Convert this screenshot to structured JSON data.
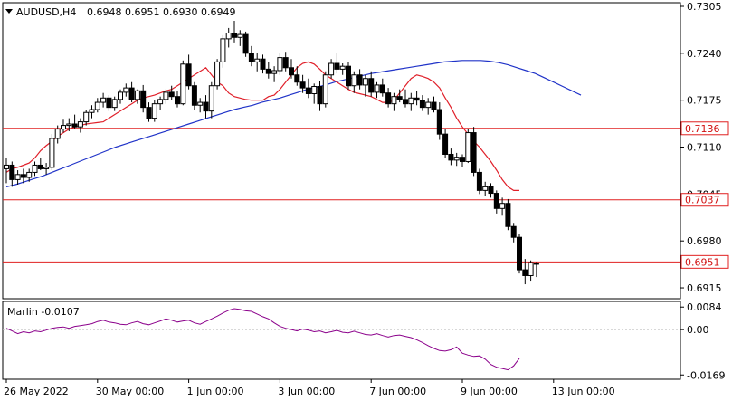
{
  "header": {
    "symbol": "AUDUSD,H4",
    "ohlc": "0.6948 0.6951 0.6930 0.6949",
    "indicator_label": "Marlin -0.0107"
  },
  "colors": {
    "bull_candle": "#ffffff",
    "bear_candle": "#000000",
    "candle_outline": "#000000",
    "ma_fast": "#e0202a",
    "ma_slow": "#2033c8",
    "hline": "#e02020",
    "hline_label_bg": "#ffffff",
    "hline_label_text": "#d01010",
    "oscillator": "#8b008b",
    "grid_border": "#000000"
  },
  "chart_data": [
    {
      "type": "candlestick",
      "name": "AUDUSD,H4",
      "x_ticks": [
        "26 May 2022",
        "30 May 00:00",
        "1 Jun 00:00",
        "3 Jun 00:00",
        "7 Jun 00:00",
        "9 Jun 00:00",
        "13 Jun 00:00"
      ],
      "x_tick_index": [
        0,
        16,
        32,
        48,
        64,
        80,
        96
      ],
      "y_ticks": [
        "0.7305",
        "0.7240",
        "0.7175",
        "0.7110",
        "0.7045",
        "0.6980",
        "0.6915"
      ],
      "y_tick_values": [
        0.7305,
        0.724,
        0.7175,
        0.711,
        0.7045,
        0.698,
        0.6915
      ],
      "ylim": [
        0.69,
        0.731
      ],
      "candles": [
        [
          0.708,
          0.7095,
          0.706,
          0.7085
        ],
        [
          0.7085,
          0.709,
          0.7055,
          0.7065
        ],
        [
          0.7065,
          0.7078,
          0.7058,
          0.7072
        ],
        [
          0.7072,
          0.708,
          0.706,
          0.7068
        ],
        [
          0.7068,
          0.708,
          0.7062,
          0.7075
        ],
        [
          0.7075,
          0.709,
          0.707,
          0.7085
        ],
        [
          0.7085,
          0.7095,
          0.7078,
          0.708
        ],
        [
          0.708,
          0.7088,
          0.7072,
          0.7082
        ],
        [
          0.7082,
          0.7128,
          0.7078,
          0.7122
        ],
        [
          0.7122,
          0.714,
          0.7115,
          0.7135
        ],
        [
          0.7135,
          0.7148,
          0.713,
          0.714
        ],
        [
          0.714,
          0.715,
          0.7132,
          0.7142
        ],
        [
          0.7142,
          0.7155,
          0.7136,
          0.7138
        ],
        [
          0.7138,
          0.715,
          0.713,
          0.7145
        ],
        [
          0.7145,
          0.7162,
          0.714,
          0.7158
        ],
        [
          0.7158,
          0.7168,
          0.715,
          0.7162
        ],
        [
          0.7162,
          0.7178,
          0.7158,
          0.7172
        ],
        [
          0.7172,
          0.7185,
          0.7165,
          0.7178
        ],
        [
          0.7178,
          0.7182,
          0.716,
          0.7165
        ],
        [
          0.7165,
          0.718,
          0.716,
          0.7176
        ],
        [
          0.7176,
          0.719,
          0.717,
          0.7186
        ],
        [
          0.7186,
          0.7198,
          0.718,
          0.7192
        ],
        [
          0.7192,
          0.72,
          0.7172,
          0.7176
        ],
        [
          0.7176,
          0.719,
          0.717,
          0.7188
        ],
        [
          0.7188,
          0.7196,
          0.7158,
          0.7165
        ],
        [
          0.7165,
          0.7172,
          0.7145,
          0.715
        ],
        [
          0.715,
          0.7175,
          0.7145,
          0.717
        ],
        [
          0.717,
          0.718,
          0.7162,
          0.7176
        ],
        [
          0.7176,
          0.719,
          0.717,
          0.7186
        ],
        [
          0.7186,
          0.7195,
          0.7175,
          0.718
        ],
        [
          0.718,
          0.7188,
          0.7165,
          0.717
        ],
        [
          0.717,
          0.723,
          0.7168,
          0.7225
        ],
        [
          0.7225,
          0.7238,
          0.719,
          0.7195
        ],
        [
          0.7195,
          0.72,
          0.7162,
          0.7168
        ],
        [
          0.7168,
          0.7178,
          0.7158,
          0.7172
        ],
        [
          0.7172,
          0.7182,
          0.715,
          0.716
        ],
        [
          0.716,
          0.72,
          0.715,
          0.7195
        ],
        [
          0.7195,
          0.7232,
          0.719,
          0.7228
        ],
        [
          0.7228,
          0.7265,
          0.722,
          0.726
        ],
        [
          0.726,
          0.7275,
          0.7248,
          0.7268
        ],
        [
          0.7268,
          0.7285,
          0.7255,
          0.7262
        ],
        [
          0.7262,
          0.7272,
          0.725,
          0.7266
        ],
        [
          0.7266,
          0.727,
          0.7235,
          0.724
        ],
        [
          0.724,
          0.725,
          0.7222,
          0.7228
        ],
        [
          0.7228,
          0.724,
          0.7215,
          0.7232
        ],
        [
          0.7232,
          0.7238,
          0.7212,
          0.7218
        ],
        [
          0.7218,
          0.7228,
          0.7205,
          0.7212
        ],
        [
          0.7212,
          0.7222,
          0.72,
          0.7216
        ],
        [
          0.7216,
          0.724,
          0.721,
          0.7234
        ],
        [
          0.7234,
          0.7242,
          0.7215,
          0.722
        ],
        [
          0.722,
          0.7232,
          0.7205,
          0.721
        ],
        [
          0.721,
          0.7222,
          0.7195,
          0.72
        ],
        [
          0.72,
          0.721,
          0.7185,
          0.7192
        ],
        [
          0.7192,
          0.7205,
          0.7178,
          0.7184
        ],
        [
          0.7184,
          0.7198,
          0.717,
          0.7194
        ],
        [
          0.7194,
          0.7202,
          0.716,
          0.717
        ],
        [
          0.717,
          0.7215,
          0.7165,
          0.721
        ],
        [
          0.721,
          0.7232,
          0.7205,
          0.7226
        ],
        [
          0.7226,
          0.724,
          0.7212,
          0.7218
        ],
        [
          0.7218,
          0.7226,
          0.721,
          0.7222
        ],
        [
          0.7222,
          0.7228,
          0.719,
          0.7195
        ],
        [
          0.7195,
          0.7215,
          0.7185,
          0.721
        ],
        [
          0.721,
          0.7218,
          0.719,
          0.7196
        ],
        [
          0.7196,
          0.721,
          0.718,
          0.7205
        ],
        [
          0.7205,
          0.7215,
          0.718,
          0.7186
        ],
        [
          0.7186,
          0.72,
          0.7178,
          0.7196
        ],
        [
          0.7196,
          0.7205,
          0.718,
          0.7185
        ],
        [
          0.7185,
          0.7192,
          0.7165,
          0.717
        ],
        [
          0.717,
          0.7185,
          0.716,
          0.718
        ],
        [
          0.718,
          0.719,
          0.7172,
          0.7176
        ],
        [
          0.7176,
          0.719,
          0.7165,
          0.717
        ],
        [
          0.717,
          0.7185,
          0.716,
          0.7178
        ],
        [
          0.7178,
          0.7188,
          0.7168,
          0.7175
        ],
        [
          0.7175,
          0.7182,
          0.716,
          0.7165
        ],
        [
          0.7165,
          0.7178,
          0.7155,
          0.7172
        ],
        [
          0.7172,
          0.718,
          0.7158,
          0.7162
        ],
        [
          0.7162,
          0.7172,
          0.712,
          0.7128
        ],
        [
          0.7128,
          0.7135,
          0.7095,
          0.71
        ],
        [
          0.71,
          0.7108,
          0.7085,
          0.7092
        ],
        [
          0.7092,
          0.7102,
          0.7084,
          0.7096
        ],
        [
          0.7096,
          0.71,
          0.7082,
          0.709
        ],
        [
          0.709,
          0.7135,
          0.7088,
          0.713
        ],
        [
          0.713,
          0.7138,
          0.707,
          0.7075
        ],
        [
          0.7075,
          0.708,
          0.7045,
          0.705
        ],
        [
          0.705,
          0.7062,
          0.7042,
          0.7055
        ],
        [
          0.7055,
          0.706,
          0.704,
          0.7046
        ],
        [
          0.7046,
          0.705,
          0.7018,
          0.7025
        ],
        [
          0.7025,
          0.704,
          0.7015,
          0.7032
        ],
        [
          0.7032,
          0.7038,
          0.6995,
          0.7
        ],
        [
          0.7,
          0.7005,
          0.6978,
          0.6985
        ],
        [
          0.6985,
          0.699,
          0.6935,
          0.694
        ],
        [
          0.694,
          0.6955,
          0.692,
          0.6932
        ],
        [
          0.6932,
          0.6953,
          0.6925,
          0.695
        ],
        [
          0.6948,
          0.6951,
          0.693,
          0.6949
        ]
      ],
      "ma_fast": [
        0.7075,
        0.708,
        0.7082,
        0.7085,
        0.7088,
        0.7095,
        0.7105,
        0.7112,
        0.7118,
        0.7125,
        0.713,
        0.7135,
        0.7138,
        0.714,
        0.7142,
        0.7143,
        0.7144,
        0.7145,
        0.715,
        0.7155,
        0.716,
        0.7165,
        0.717,
        0.7175,
        0.7178,
        0.718,
        0.7182,
        0.7185,
        0.7188,
        0.719,
        0.7195,
        0.72,
        0.7205,
        0.721,
        0.7215,
        0.722,
        0.721,
        0.72,
        0.7195,
        0.7185,
        0.718,
        0.7178,
        0.7176,
        0.7175,
        0.7175,
        0.7175,
        0.718,
        0.7182,
        0.719,
        0.72,
        0.721,
        0.722,
        0.7226,
        0.7228,
        0.7225,
        0.7218,
        0.721,
        0.7205,
        0.72,
        0.7195,
        0.719,
        0.7186,
        0.7184,
        0.7182,
        0.718,
        0.7176,
        0.7172,
        0.7172,
        0.7175,
        0.7185,
        0.7195,
        0.7205,
        0.721,
        0.7208,
        0.7205,
        0.72,
        0.7192,
        0.7178,
        0.7165,
        0.715,
        0.7138,
        0.7128,
        0.7118,
        0.711,
        0.71,
        0.709,
        0.7078,
        0.7065,
        0.7055,
        0.705,
        0.705
      ],
      "ma_slow": [
        0.7055,
        0.7058,
        0.7062,
        0.7066,
        0.707,
        0.7075,
        0.708,
        0.7085,
        0.709,
        0.7095,
        0.71,
        0.7105,
        0.711,
        0.7114,
        0.7118,
        0.7122,
        0.7126,
        0.713,
        0.7134,
        0.7138,
        0.7142,
        0.7146,
        0.715,
        0.7154,
        0.7158,
        0.7162,
        0.7165,
        0.7168,
        0.7172,
        0.7175,
        0.7178,
        0.7182,
        0.7186,
        0.719,
        0.7193,
        0.7196,
        0.72,
        0.7203,
        0.7206,
        0.7209,
        0.7212,
        0.7214,
        0.7216,
        0.7218,
        0.722,
        0.7222,
        0.7224,
        0.7226,
        0.7228,
        0.7229,
        0.723,
        0.723,
        0.723,
        0.7229,
        0.7227,
        0.7224,
        0.722,
        0.7216,
        0.7212,
        0.7206,
        0.72,
        0.7194,
        0.7188,
        0.7182
      ],
      "horizontal_lines": [
        {
          "value": 0.7136,
          "label": "0.7136"
        },
        {
          "value": 0.7037,
          "label": "0.7037"
        },
        {
          "value": 0.6951,
          "label": "0.6951"
        }
      ]
    },
    {
      "type": "line",
      "name": "Marlin",
      "y_ticks": [
        "0.0084",
        "0.00",
        "-0.0169"
      ],
      "y_tick_values": [
        0.0084,
        0.0,
        -0.0169
      ],
      "ylim": [
        -0.0185,
        0.0105
      ],
      "values": [
        0.0005,
        -0.0005,
        -0.0015,
        -0.0008,
        -0.0012,
        -0.0005,
        -0.0008,
        -0.0002,
        0.0005,
        0.0008,
        0.001,
        0.0005,
        0.0012,
        0.0015,
        0.0018,
        0.0022,
        0.003,
        0.0035,
        0.0028,
        0.0025,
        0.002,
        0.0018,
        0.0025,
        0.003,
        0.0022,
        0.0018,
        0.0025,
        0.0032,
        0.004,
        0.0035,
        0.0028,
        0.0032,
        0.0035,
        0.0025,
        0.002,
        0.003,
        0.004,
        0.005,
        0.0062,
        0.0072,
        0.0078,
        0.0075,
        0.007,
        0.0068,
        0.0058,
        0.0048,
        0.004,
        0.0025,
        0.0012,
        0.0005,
        0.0,
        -0.0005,
        0.0002,
        -0.0002,
        -0.0008,
        -0.0005,
        -0.0012,
        -0.0008,
        -0.0003,
        -0.001,
        -0.0012,
        -0.0006,
        -0.0012,
        -0.0018,
        -0.002,
        -0.0015,
        -0.0022,
        -0.0028,
        -0.0022,
        -0.002,
        -0.0025,
        -0.003,
        -0.0038,
        -0.0048,
        -0.006,
        -0.007,
        -0.0078,
        -0.008,
        -0.0075,
        -0.0065,
        -0.0088,
        -0.0095,
        -0.01,
        -0.0098,
        -0.011,
        -0.013,
        -0.014,
        -0.0145,
        -0.015,
        -0.0135,
        -0.0107
      ]
    }
  ]
}
